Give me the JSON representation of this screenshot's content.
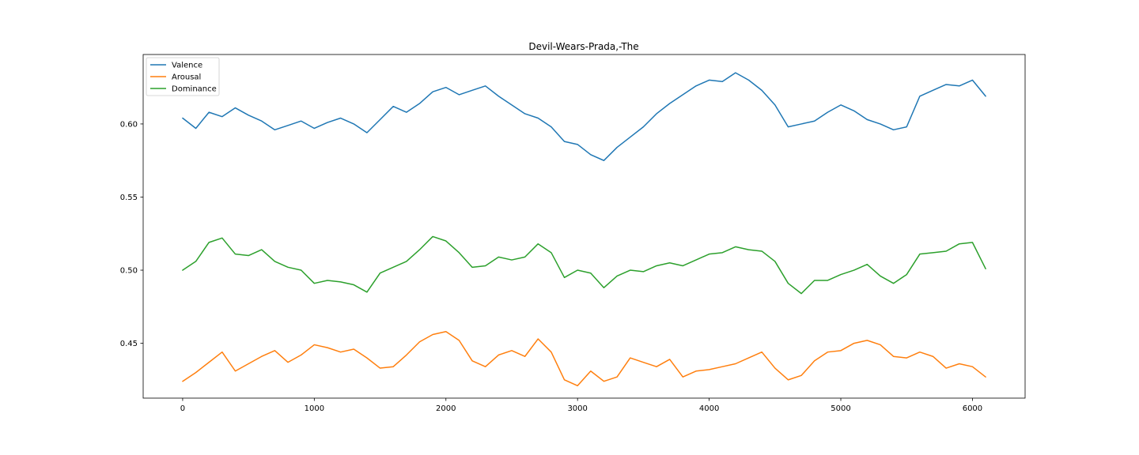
{
  "chart_data": {
    "type": "line",
    "title": "Devil-Wears-Prada,-The",
    "xlabel": "",
    "ylabel": "",
    "xlim": [
      -300,
      6400
    ],
    "ylim": [
      0.4125,
      0.6475
    ],
    "x_ticks": [
      0,
      1000,
      2000,
      3000,
      4000,
      5000,
      6000
    ],
    "y_ticks": [
      0.45,
      0.5,
      0.55,
      0.6
    ],
    "y_tick_labels": [
      "0.45",
      "0.50",
      "0.55",
      "0.60"
    ],
    "x_tick_labels": [
      "0",
      "1000",
      "2000",
      "3000",
      "4000",
      "5000",
      "6000"
    ],
    "grid": false,
    "legend_placement": "top-left",
    "series": [
      {
        "name": "Valence",
        "color": "#1f77b4",
        "x": [
          0,
          100,
          200,
          300,
          400,
          500,
          600,
          700,
          800,
          900,
          1000,
          1100,
          1200,
          1300,
          1400,
          1500,
          1600,
          1700,
          1800,
          1900,
          2000,
          2100,
          2200,
          2300,
          2400,
          2500,
          2600,
          2700,
          2800,
          2900,
          3000,
          3100,
          3200,
          3300,
          3400,
          3500,
          3600,
          3700,
          3800,
          3900,
          4000,
          4100,
          4200,
          4300,
          4400,
          4500,
          4600,
          4700,
          4800,
          4900,
          5000,
          5100,
          5200,
          5300,
          5400,
          5500,
          5600,
          5700,
          5800,
          5900,
          6000,
          6100
        ],
        "values": [
          0.604,
          0.597,
          0.608,
          0.605,
          0.611,
          0.606,
          0.602,
          0.596,
          0.599,
          0.602,
          0.597,
          0.601,
          0.604,
          0.6,
          0.594,
          0.603,
          0.612,
          0.608,
          0.614,
          0.622,
          0.625,
          0.62,
          0.623,
          0.626,
          0.619,
          0.613,
          0.607,
          0.604,
          0.598,
          0.588,
          0.586,
          0.579,
          0.575,
          0.584,
          0.591,
          0.598,
          0.607,
          0.614,
          0.62,
          0.626,
          0.63,
          0.629,
          0.635,
          0.63,
          0.623,
          0.613,
          0.598,
          0.6,
          0.602,
          0.608,
          0.613,
          0.609,
          0.603,
          0.6,
          0.596,
          0.598,
          0.619,
          0.623,
          0.627,
          0.626,
          0.63,
          0.619
        ]
      },
      {
        "name": "Arousal",
        "color": "#ff7f0e",
        "x": [
          0,
          100,
          200,
          300,
          400,
          500,
          600,
          700,
          800,
          900,
          1000,
          1100,
          1200,
          1300,
          1400,
          1500,
          1600,
          1700,
          1800,
          1900,
          2000,
          2100,
          2200,
          2300,
          2400,
          2500,
          2600,
          2700,
          2800,
          2900,
          3000,
          3100,
          3200,
          3300,
          3400,
          3500,
          3600,
          3700,
          3800,
          3900,
          4000,
          4100,
          4200,
          4300,
          4400,
          4500,
          4600,
          4700,
          4800,
          4900,
          5000,
          5100,
          5200,
          5300,
          5400,
          5500,
          5600,
          5700,
          5800,
          5900,
          6000,
          6100
        ],
        "values": [
          0.424,
          0.43,
          0.437,
          0.444,
          0.431,
          0.436,
          0.441,
          0.445,
          0.437,
          0.442,
          0.449,
          0.447,
          0.444,
          0.446,
          0.44,
          0.433,
          0.434,
          0.442,
          0.451,
          0.456,
          0.458,
          0.452,
          0.438,
          0.434,
          0.442,
          0.445,
          0.441,
          0.453,
          0.444,
          0.425,
          0.421,
          0.431,
          0.424,
          0.427,
          0.44,
          0.437,
          0.434,
          0.439,
          0.427,
          0.431,
          0.432,
          0.434,
          0.436,
          0.44,
          0.444,
          0.433,
          0.425,
          0.428,
          0.438,
          0.444,
          0.445,
          0.45,
          0.452,
          0.449,
          0.441,
          0.44,
          0.444,
          0.441,
          0.433,
          0.436,
          0.434,
          0.427
        ]
      },
      {
        "name": "Dominance",
        "color": "#2ca02c",
        "x": [
          0,
          100,
          200,
          300,
          400,
          500,
          600,
          700,
          800,
          900,
          1000,
          1100,
          1200,
          1300,
          1400,
          1500,
          1600,
          1700,
          1800,
          1900,
          2000,
          2100,
          2200,
          2300,
          2400,
          2500,
          2600,
          2700,
          2800,
          2900,
          3000,
          3100,
          3200,
          3300,
          3400,
          3500,
          3600,
          3700,
          3800,
          3900,
          4000,
          4100,
          4200,
          4300,
          4400,
          4500,
          4600,
          4700,
          4800,
          4900,
          5000,
          5100,
          5200,
          5300,
          5400,
          5500,
          5600,
          5700,
          5800,
          5900,
          6000,
          6100
        ],
        "values": [
          0.5,
          0.506,
          0.519,
          0.522,
          0.511,
          0.51,
          0.514,
          0.506,
          0.502,
          0.5,
          0.491,
          0.493,
          0.492,
          0.49,
          0.485,
          0.498,
          0.502,
          0.506,
          0.514,
          0.523,
          0.52,
          0.512,
          0.502,
          0.503,
          0.509,
          0.507,
          0.509,
          0.518,
          0.512,
          0.495,
          0.5,
          0.498,
          0.488,
          0.496,
          0.5,
          0.499,
          0.503,
          0.505,
          0.503,
          0.507,
          0.511,
          0.512,
          0.516,
          0.514,
          0.513,
          0.506,
          0.491,
          0.484,
          0.493,
          0.493,
          0.497,
          0.5,
          0.504,
          0.496,
          0.491,
          0.497,
          0.511,
          0.512,
          0.513,
          0.518,
          0.519,
          0.501
        ]
      }
    ]
  }
}
